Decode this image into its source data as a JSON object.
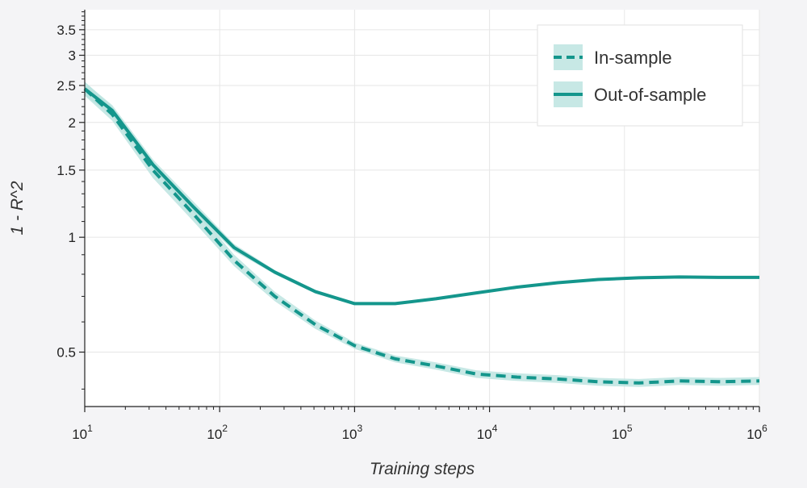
{
  "chart_data": {
    "type": "line",
    "xlabel": "Training steps",
    "ylabel": "1 - R^2",
    "x_scale": "log",
    "y_scale": "log",
    "xlim": [
      10,
      1000000
    ],
    "ylim": [
      0.36,
      3.95
    ],
    "grid": true,
    "legend_placement": "top-right",
    "x_ticks": [
      {
        "value": 10,
        "base": "10",
        "exp": "1"
      },
      {
        "value": 100,
        "base": "10",
        "exp": "2"
      },
      {
        "value": 1000,
        "base": "10",
        "exp": "3"
      },
      {
        "value": 10000,
        "base": "10",
        "exp": "4"
      },
      {
        "value": 100000,
        "base": "10",
        "exp": "5"
      },
      {
        "value": 1000000,
        "base": "10",
        "exp": "6"
      }
    ],
    "y_ticks": [
      {
        "value": 0.5,
        "label": "0.5"
      },
      {
        "value": 1,
        "label": "1"
      },
      {
        "value": 1.5,
        "label": "1.5"
      },
      {
        "value": 2,
        "label": "2"
      },
      {
        "value": 2.5,
        "label": "2.5"
      },
      {
        "value": 3,
        "label": "3"
      },
      {
        "value": 3.5,
        "label": "3.5"
      }
    ],
    "color": "#14968c",
    "band_color": "#b9e2de",
    "series": [
      {
        "name": "In-sample",
        "style": "dashed",
        "points": [
          {
            "x": 10,
            "y": 2.45,
            "lo": 2.35,
            "hi": 2.56
          },
          {
            "x": 16,
            "y": 2.1,
            "lo": 2.02,
            "hi": 2.2
          },
          {
            "x": 32,
            "y": 1.5,
            "lo": 1.43,
            "hi": 1.56
          },
          {
            "x": 64,
            "y": 1.15,
            "lo": 1.1,
            "hi": 1.2
          },
          {
            "x": 128,
            "y": 0.87,
            "lo": 0.84,
            "hi": 0.9
          },
          {
            "x": 256,
            "y": 0.7,
            "lo": 0.68,
            "hi": 0.72
          },
          {
            "x": 512,
            "y": 0.59,
            "lo": 0.575,
            "hi": 0.605
          },
          {
            "x": 1000,
            "y": 0.52,
            "lo": 0.51,
            "hi": 0.53
          },
          {
            "x": 2000,
            "y": 0.48,
            "lo": 0.47,
            "hi": 0.49
          },
          {
            "x": 4000,
            "y": 0.46,
            "lo": 0.45,
            "hi": 0.47
          },
          {
            "x": 8000,
            "y": 0.438,
            "lo": 0.428,
            "hi": 0.448
          },
          {
            "x": 16000,
            "y": 0.43,
            "lo": 0.42,
            "hi": 0.44
          },
          {
            "x": 32000,
            "y": 0.425,
            "lo": 0.415,
            "hi": 0.435
          },
          {
            "x": 64000,
            "y": 0.418,
            "lo": 0.408,
            "hi": 0.428
          },
          {
            "x": 128000,
            "y": 0.415,
            "lo": 0.405,
            "hi": 0.425
          },
          {
            "x": 256000,
            "y": 0.42,
            "lo": 0.41,
            "hi": 0.43
          },
          {
            "x": 512000,
            "y": 0.418,
            "lo": 0.408,
            "hi": 0.428
          },
          {
            "x": 1000000,
            "y": 0.42,
            "lo": 0.41,
            "hi": 0.43
          }
        ]
      },
      {
        "name": "Out-of-sample",
        "style": "solid",
        "points": [
          {
            "x": 10,
            "y": 2.45,
            "lo": 2.36,
            "hi": 2.55
          },
          {
            "x": 16,
            "y": 2.15,
            "lo": 2.08,
            "hi": 2.22
          },
          {
            "x": 32,
            "y": 1.55,
            "lo": 1.5,
            "hi": 1.6
          },
          {
            "x": 64,
            "y": 1.2,
            "lo": 1.16,
            "hi": 1.24
          },
          {
            "x": 128,
            "y": 0.94,
            "lo": 0.92,
            "hi": 0.96
          },
          {
            "x": 256,
            "y": 0.81,
            "lo": 0.8,
            "hi": 0.82
          },
          {
            "x": 512,
            "y": 0.72,
            "lo": 0.712,
            "hi": 0.728
          },
          {
            "x": 1000,
            "y": 0.67,
            "lo": 0.664,
            "hi": 0.676
          },
          {
            "x": 2000,
            "y": 0.67,
            "lo": 0.664,
            "hi": 0.676
          },
          {
            "x": 4000,
            "y": 0.69,
            "lo": 0.684,
            "hi": 0.696
          },
          {
            "x": 8000,
            "y": 0.715,
            "lo": 0.709,
            "hi": 0.721
          },
          {
            "x": 16000,
            "y": 0.74,
            "lo": 0.734,
            "hi": 0.746
          },
          {
            "x": 32000,
            "y": 0.76,
            "lo": 0.754,
            "hi": 0.766
          },
          {
            "x": 64000,
            "y": 0.775,
            "lo": 0.769,
            "hi": 0.781
          },
          {
            "x": 128000,
            "y": 0.783,
            "lo": 0.777,
            "hi": 0.789
          },
          {
            "x": 256000,
            "y": 0.787,
            "lo": 0.781,
            "hi": 0.793
          },
          {
            "x": 512000,
            "y": 0.785,
            "lo": 0.779,
            "hi": 0.791
          },
          {
            "x": 1000000,
            "y": 0.785,
            "lo": 0.779,
            "hi": 0.791
          }
        ]
      }
    ]
  }
}
